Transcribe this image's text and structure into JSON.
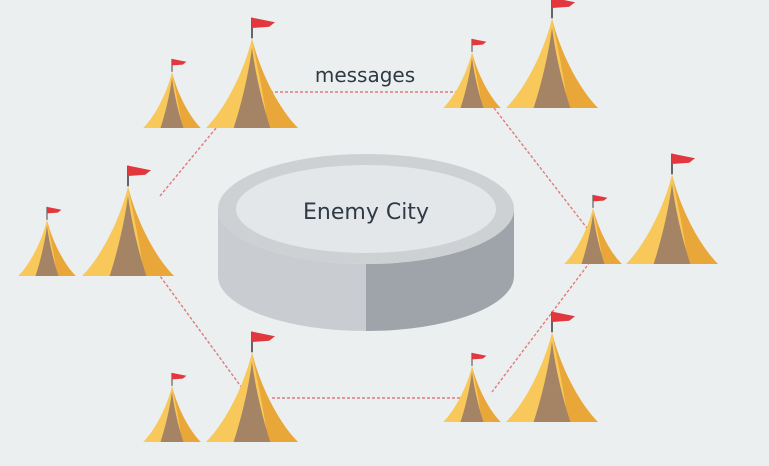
{
  "center": {
    "label": "Enemy City"
  },
  "edges": [
    {
      "label": "messages"
    }
  ],
  "colors": {
    "background": "#eceff0",
    "tent_light": "#f8c95a",
    "tent_dark": "#e9a73a",
    "tent_door": "#a58466",
    "flag": "#e3373e",
    "pole": "#5a5a5a",
    "link": "#e07a7a",
    "city_top": "#e4e7e9",
    "city_rim": "#cdd1d4",
    "city_side_left": "#c9ccd0",
    "city_side_right": "#9fa4ab",
    "text": "#2f3a45"
  },
  "icons": {
    "tent": "tent-icon",
    "flag": "flag-icon"
  }
}
